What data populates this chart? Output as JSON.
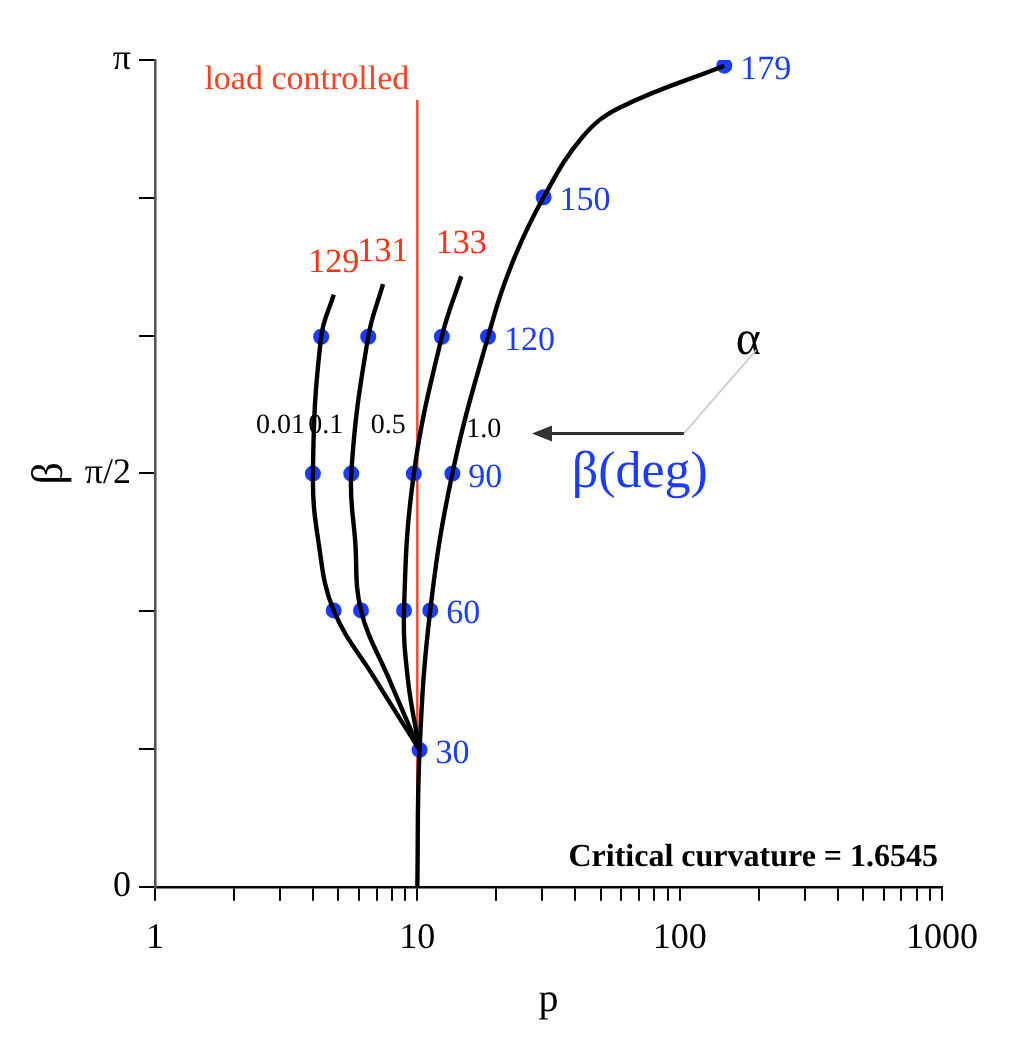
{
  "chart_data": {
    "type": "line",
    "xlabel": "p",
    "ylabel": "β",
    "log": "x",
    "grid": false,
    "legend": false,
    "marker": "none",
    "line_style": "solid",
    "xlim": [
      1,
      1000
    ],
    "xticks": [
      1,
      {
        "value": 2,
        "label": null
      },
      {
        "value": 3,
        "label": null
      },
      {
        "value": 4,
        "label": null
      },
      {
        "value": 5,
        "label": null
      },
      {
        "value": 6,
        "label": null
      },
      {
        "value": 7,
        "label": null
      },
      {
        "value": 8,
        "label": null
      },
      {
        "value": 9,
        "label": null
      },
      10,
      {
        "value": 20,
        "label": null
      },
      {
        "value": 30,
        "label": null
      },
      {
        "value": 40,
        "label": null
      },
      {
        "value": 50,
        "label": null
      },
      {
        "value": 60,
        "label": null
      },
      {
        "value": 70,
        "label": null
      },
      {
        "value": 80,
        "label": null
      },
      {
        "value": 90,
        "label": null
      },
      100,
      {
        "value": 200,
        "label": null
      },
      {
        "value": 300,
        "label": null
      },
      {
        "value": 400,
        "label": null
      },
      {
        "value": 500,
        "label": null
      },
      {
        "value": 600,
        "label": null
      },
      {
        "value": 700,
        "label": null
      },
      {
        "value": 800,
        "label": null
      },
      {
        "value": 900,
        "label": null
      },
      1000
    ],
    "ylim": [
      0,
      3.1416
    ],
    "yticks": [
      {
        "value": 0,
        "label": "0"
      },
      {
        "value": 0.5236,
        "label": null
      },
      {
        "value": 1.0472,
        "label": null
      },
      {
        "value": 1.5708,
        "label": "π/2"
      },
      {
        "value": 2.0944,
        "label": null
      },
      {
        "value": 2.618,
        "label": null
      },
      {
        "value": 3.1416,
        "label": "π"
      }
    ],
    "series": [
      {
        "name": "0.01",
        "color": "#000000",
        "x": [
          10.2,
          6.9,
          4.8,
          4.2,
          4.0,
          4.3,
          4.8
        ],
        "values": [
          0.52,
          0.79,
          1.05,
          1.31,
          1.57,
          2.09,
          2.25
        ]
      },
      {
        "name": "0.1",
        "color": "#000000",
        "x": [
          10.2,
          7.8,
          6.1,
          5.8,
          5.6,
          6.5,
          7.4
        ],
        "values": [
          0.52,
          0.79,
          1.05,
          1.31,
          1.57,
          2.09,
          2.29
        ]
      },
      {
        "name": "0.5",
        "color": "#000000",
        "x": [
          10.2,
          9.2,
          8.9,
          9.7,
          12.4,
          14.7
        ],
        "values": [
          0.52,
          0.79,
          1.05,
          1.57,
          2.09,
          2.32
        ]
      },
      {
        "name": "1.0",
        "color": "#000000",
        "x": [
          10,
          10.2,
          11.2,
          13.6,
          18.6,
          23,
          30.3,
          42.7,
          59,
          148
        ],
        "values": [
          0,
          0.52,
          1.05,
          1.57,
          2.09,
          2.37,
          2.62,
          2.85,
          2.96,
          3.12
        ]
      },
      {
        "type": "scatter",
        "marker": "circle",
        "color": "#1a3cff",
        "x": [
          10.2,
          4.8,
          6.1,
          8.9,
          11.2,
          4.0,
          5.6,
          9.7,
          13.6,
          4.3,
          6.5,
          12.4,
          18.6,
          30.3,
          148
        ],
        "values": [
          0.52,
          1.05,
          1.05,
          1.05,
          1.05,
          1.57,
          1.57,
          1.57,
          1.57,
          2.09,
          2.09,
          2.09,
          2.09,
          2.62,
          3.12
        ]
      }
    ],
    "ref_lines": [
      {
        "axis": "x",
        "value": 10,
        "label": "load controlled",
        "color": "#ff4020"
      }
    ],
    "annotations": [
      {
        "text": "129",
        "x": 4.8,
        "y": 2.25
      },
      {
        "text": "131",
        "x": 7.4,
        "y": 2.29
      },
      {
        "text": "133",
        "x": 14.7,
        "y": 2.32
      },
      {
        "text": "30",
        "x": 10.2,
        "y": 0.52
      },
      {
        "text": "60",
        "x": 11.2,
        "y": 1.05
      },
      {
        "text": "90",
        "x": 13.6,
        "y": 1.57
      },
      {
        "text": "120",
        "x": 18.6,
        "y": 2.09
      },
      {
        "text": "150",
        "x": 30.3,
        "y": 2.62
      },
      {
        "text": "179",
        "x": 148,
        "y": 3.12
      },
      "Critical curvature = 1.6545",
      "α",
      "β(deg)"
    ]
  }
}
